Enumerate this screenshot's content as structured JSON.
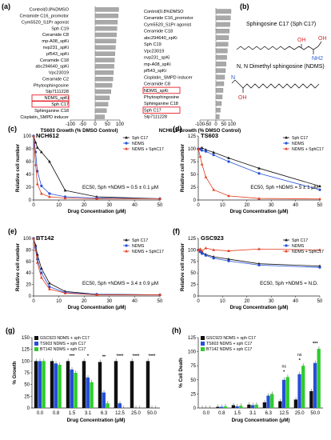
{
  "chart_data": [
    {
      "panel": "(a)",
      "type": "bar",
      "orientation": "horizontal",
      "xlabel": "TS603 Growth (% DMSO Control)",
      "xticks": [
        "-100",
        "-50",
        "0",
        "50",
        "100"
      ],
      "xlim": [
        -100,
        100
      ],
      "categories": [
        "Control(0.8%DMSO",
        "Ceramide C16_promotor",
        "Cym5520_S1Pr agonist",
        "Sph C19",
        "Ceramide C8",
        "mp-A08_spKi",
        "nvp231_spKi",
        "pf543_spKi",
        "Ceramide C18",
        "abc294640_spKi",
        "Vpc23019",
        "Ceramide C2",
        "Phytosphingosine",
        "Slp7111228",
        "NDMS_spKi",
        "Sph C17",
        "Sphinganine C18",
        "Cisplatin_SMPD inducer"
      ],
      "values": [
        95,
        93,
        90,
        88,
        86,
        84,
        82,
        80,
        78,
        76,
        74,
        72,
        68,
        64,
        58,
        52,
        46,
        38
      ],
      "highlighted": [
        "NDMS_spKi",
        "Sph C17"
      ]
    },
    {
      "panel": "(a) right",
      "type": "bar",
      "orientation": "horizontal",
      "xlabel": "NCH612 Growth (% DMSO Control)",
      "xticks": [
        "-100",
        "-50",
        "0",
        "50",
        "100"
      ],
      "xlim": [
        -100,
        100
      ],
      "categories": [
        "Control(0.8%DMSO",
        "Ceramide C16_promotor",
        "Cym5520_S1Pr agonist",
        "Ceramide C18",
        "abc294640_spKi",
        "Sph C19",
        "Vpc23019",
        "nvp231_spKi",
        "mp-A08_spKi",
        "pf543_spKi",
        "Cisplatin_SMPD inducer",
        "Ceramide C8",
        "NDMS_spKi",
        "Phytosphingosine",
        "Sphinganine C18",
        "Sph C17",
        "Slp7111228"
      ],
      "values": [
        95,
        92,
        88,
        84,
        80,
        76,
        72,
        68,
        64,
        60,
        55,
        50,
        45,
        40,
        35,
        28,
        22
      ],
      "highlighted": [
        "NDMS_spKi",
        "Sph C17"
      ]
    },
    {
      "panel": "(c)",
      "type": "line",
      "title": "NCH612",
      "xlabel": "Drug Concentration (μM)",
      "ylabel": "Relative cell number",
      "xlim": [
        0,
        50
      ],
      "ylim": [
        0,
        100
      ],
      "xticks": [
        "0",
        "10",
        "20",
        "30",
        "40",
        "50"
      ],
      "yticks": [
        "0",
        "20",
        "40",
        "60",
        "80",
        "100"
      ],
      "annotation": "EC50, Sph +NDMS = 0.5 ± 0.1 μM",
      "x": [
        0,
        0.8,
        1.5,
        3.1,
        6.3,
        12.5,
        25,
        50
      ],
      "series": [
        {
          "name": "Sph C17",
          "values": [
            100,
            90,
            82,
            75,
            60,
            15,
            5,
            2
          ]
        },
        {
          "name": "NDMS",
          "values": [
            100,
            75,
            45,
            22,
            10,
            5,
            3,
            2
          ]
        },
        {
          "name": "NDMS + SphC17",
          "values": [
            100,
            55,
            25,
            10,
            5,
            3,
            2,
            2
          ]
        }
      ]
    },
    {
      "panel": "(d)",
      "type": "line",
      "title": "TS603",
      "xlabel": "Drug Concentration (μM)",
      "ylabel": "Relative cell number",
      "xlim": [
        0,
        50
      ],
      "ylim": [
        0,
        125
      ],
      "xticks": [
        "0",
        "10",
        "20",
        "30",
        "40",
        "50"
      ],
      "yticks": [
        "0",
        "25",
        "50",
        "75",
        "100",
        "125"
      ],
      "annotation": "EC50, Sph +NDMS = 5 ± 1 μM",
      "x": [
        0,
        0.8,
        1.5,
        3.1,
        6.3,
        12.5,
        25,
        50
      ],
      "series": [
        {
          "name": "Sph C17",
          "values": [
            100,
            100,
            102,
            98,
            93,
            82,
            62,
            27
          ]
        },
        {
          "name": "NDMS",
          "values": [
            100,
            99,
            97,
            95,
            88,
            75,
            52,
            20
          ]
        },
        {
          "name": "NDMS + SphC17",
          "values": [
            100,
            85,
            70,
            45,
            20,
            8,
            3,
            2
          ]
        }
      ]
    },
    {
      "panel": "(e)",
      "type": "line",
      "title": "BT142",
      "xlabel": "Drug Concentration (μM)",
      "ylabel": "Relative cell number",
      "xlim": [
        0,
        50
      ],
      "ylim": [
        0,
        100
      ],
      "xticks": [
        "0",
        "10",
        "20",
        "30",
        "40",
        "50"
      ],
      "yticks": [
        "0",
        "20",
        "40",
        "60",
        "80",
        "100"
      ],
      "annotation": "EC50, Sph +NDMS = 3.4 ± 0.9 μM",
      "x": [
        0,
        0.8,
        1.5,
        3.1,
        6.3,
        12.5,
        25,
        50
      ],
      "series": [
        {
          "name": "Sph C17",
          "values": [
            100,
            88,
            72,
            48,
            22,
            8,
            3,
            2
          ]
        },
        {
          "name": "NDMS",
          "values": [
            100,
            84,
            64,
            40,
            16,
            6,
            3,
            2
          ]
        },
        {
          "name": "NDMS + SphC17",
          "values": [
            100,
            80,
            58,
            32,
            12,
            5,
            2,
            2
          ]
        }
      ]
    },
    {
      "panel": "(f)",
      "type": "line",
      "title": "GSC923",
      "xlabel": "Drug Concentration (μM)",
      "ylabel": "Relative cell number",
      "xlim": [
        0,
        50
      ],
      "ylim": [
        0,
        125
      ],
      "xticks": [
        "0",
        "10",
        "20",
        "30",
        "40",
        "50"
      ],
      "yticks": [
        "0",
        "25",
        "50",
        "75",
        "100",
        "125"
      ],
      "annotation": "EC50, Sph +NDMS = N.D.",
      "x": [
        0,
        0.8,
        1.5,
        3.1,
        6.3,
        12.5,
        25,
        50
      ],
      "series": [
        {
          "name": "Sph C17",
          "values": [
            100,
            97,
            95,
            90,
            85,
            80,
            70,
            65
          ]
        },
        {
          "name": "NDMS",
          "values": [
            100,
            96,
            92,
            88,
            82,
            76,
            67,
            62
          ]
        },
        {
          "name": "NDMS + SphC17",
          "values": [
            100,
            102,
            98,
            104,
            100,
            98,
            102,
            100
          ]
        }
      ]
    },
    {
      "panel": "(g)",
      "type": "bar",
      "xlabel": "Drug Concentration (μM)",
      "ylabel": "% Growth",
      "ylim": [
        0,
        150
      ],
      "yticks": [
        "0",
        "25",
        "50",
        "75",
        "100",
        "125",
        "150"
      ],
      "categories": [
        "0.0",
        "0.8",
        "1.5",
        "3.1",
        "6.3",
        "12.5",
        "25.0",
        "50.0"
      ],
      "series": [
        {
          "name": "GSC923 NDMS + sph C17",
          "color": "#111111",
          "values": [
            100,
            100,
            100,
            100,
            98,
            100,
            100,
            100
          ]
        },
        {
          "name": "TS603 NDMS + sph C17",
          "color": "#2450d8",
          "values": [
            100,
            95,
            82,
            65,
            33,
            10,
            0,
            0
          ]
        },
        {
          "name": "BT142 NDMS + sph C17",
          "color": "#2ecc2e",
          "values": [
            100,
            92,
            75,
            55,
            10,
            0,
            0,
            0
          ]
        }
      ],
      "significance": [
        "",
        "",
        "***",
        "*",
        "**",
        "****",
        "****",
        "****"
      ]
    },
    {
      "panel": "(h)",
      "type": "bar",
      "xlabel": "Drug Concentration (μM)",
      "ylabel": "% Cell Death",
      "ylim": [
        0,
        125
      ],
      "yticks": [
        "0",
        "25",
        "50",
        "75",
        "100",
        "125"
      ],
      "categories": [
        "0.0",
        "0.8",
        "1.5",
        "3.1",
        "6.3",
        "12.5",
        "25.0",
        "50.0"
      ],
      "series": [
        {
          "name": "GSC923 NDMS + sph C17",
          "color": "#111111",
          "values": [
            0,
            2,
            5,
            6,
            10,
            12,
            15,
            30
          ]
        },
        {
          "name": "TS603 NDMS + sph C17",
          "color": "#2450d8",
          "values": [
            0,
            2,
            3,
            5,
            22,
            50,
            60,
            80
          ]
        },
        {
          "name": "BT142 NDMS + sph C17",
          "color": "#2ecc2e",
          "values": [
            0,
            3,
            4,
            6,
            25,
            55,
            75,
            105
          ]
        }
      ],
      "significance": [
        "",
        "",
        "",
        "",
        "",
        "*",
        "*",
        "***"
      ],
      "ns_marks": [
        "ns",
        "ns"
      ]
    }
  ],
  "structures": {
    "panel": "(b)",
    "label1": "Sphingosine C17 (Sph C17)",
    "label2": "N, N Dimethyl sphingosine (NDMS)",
    "atoms": [
      "OH",
      "NH2",
      "OH",
      "OH",
      "N"
    ]
  },
  "panel_labels": [
    "(a)",
    "(b)",
    "(c)",
    "(d)",
    "(e)",
    "(f)",
    "(g)",
    "(h)"
  ],
  "colors": {
    "black": "#111111",
    "blue": "#2450d8",
    "red": "#e33b1c",
    "green": "#2ecc2e",
    "gray": "#a9a9a9",
    "highlight": "#e8202a"
  }
}
